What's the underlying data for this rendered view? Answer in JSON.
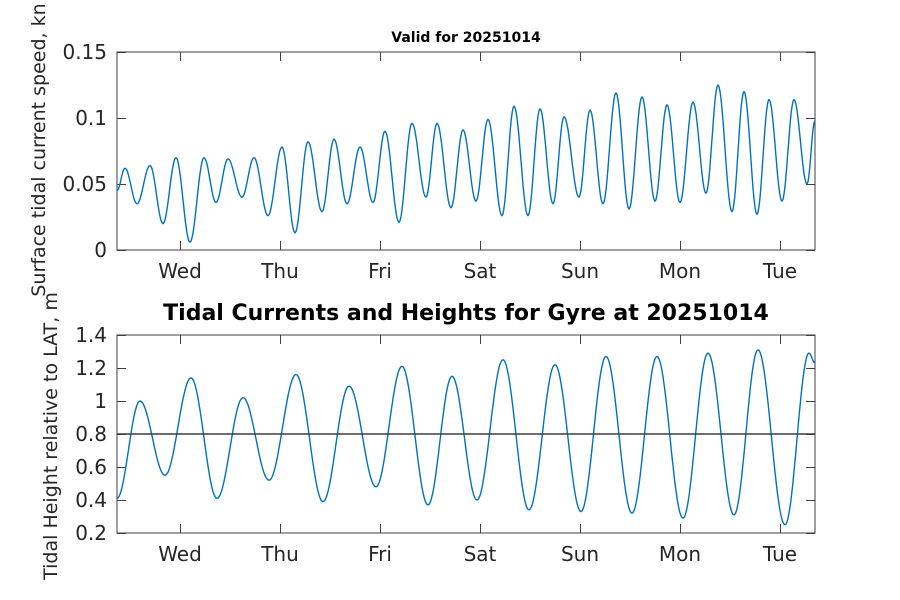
{
  "figure": {
    "background": "#ffffff",
    "axis_color": "#3f3f3f",
    "text_color": "#262626",
    "line_color": "#0072BD",
    "mean_line_color": "#3f3f3f"
  },
  "chart_data": [
    {
      "id": "surface-current-speed",
      "type": "line",
      "title": "Valid for 20251014",
      "xlabel": "",
      "ylabel": "Surface tidal current speed, kn",
      "x_unit": "day of week (Wed=1 ... Tue=7)",
      "xlim": [
        0.37,
        7.35
      ],
      "ylim": [
        0,
        0.15
      ],
      "grid": false,
      "legend": "none",
      "xticks": [
        {
          "t": 1,
          "label": "Wed"
        },
        {
          "t": 2,
          "label": "Thu"
        },
        {
          "t": 3,
          "label": "Fri"
        },
        {
          "t": 4,
          "label": "Sat"
        },
        {
          "t": 5,
          "label": "Sun"
        },
        {
          "t": 6,
          "label": "Mon"
        },
        {
          "t": 7,
          "label": "Tue"
        }
      ],
      "yticks": [
        {
          "v": 0,
          "label": "0"
        },
        {
          "v": 0.05,
          "label": "0.05"
        },
        {
          "v": 0.1,
          "label": "0.1"
        },
        {
          "v": 0.15,
          "label": "0.15"
        }
      ],
      "series": [
        {
          "name": "surface tidal current speed (kn)",
          "color": "#0072BD",
          "interpolation": "cosine-through-extremes",
          "points": [
            [
              0.37,
              0.045
            ],
            [
              0.45,
              0.062
            ],
            [
              0.57,
              0.035
            ],
            [
              0.7,
              0.064
            ],
            [
              0.83,
              0.02
            ],
            [
              0.96,
              0.07
            ],
            [
              1.1,
              0.006
            ],
            [
              1.24,
              0.07
            ],
            [
              1.36,
              0.036
            ],
            [
              1.48,
              0.069
            ],
            [
              1.62,
              0.04
            ],
            [
              1.74,
              0.07
            ],
            [
              1.88,
              0.026
            ],
            [
              2.02,
              0.078
            ],
            [
              2.15,
              0.013
            ],
            [
              2.28,
              0.082
            ],
            [
              2.42,
              0.029
            ],
            [
              2.54,
              0.084
            ],
            [
              2.67,
              0.035
            ],
            [
              2.8,
              0.078
            ],
            [
              2.93,
              0.036
            ],
            [
              3.05,
              0.09
            ],
            [
              3.19,
              0.021
            ],
            [
              3.32,
              0.096
            ],
            [
              3.46,
              0.04
            ],
            [
              3.57,
              0.096
            ],
            [
              3.71,
              0.032
            ],
            [
              3.83,
              0.091
            ],
            [
              3.96,
              0.037
            ],
            [
              4.08,
              0.099
            ],
            [
              4.22,
              0.026
            ],
            [
              4.34,
              0.109
            ],
            [
              4.48,
              0.026
            ],
            [
              4.6,
              0.107
            ],
            [
              4.73,
              0.035
            ],
            [
              4.84,
              0.101
            ],
            [
              4.99,
              0.04
            ],
            [
              5.1,
              0.106
            ],
            [
              5.23,
              0.035
            ],
            [
              5.36,
              0.119
            ],
            [
              5.49,
              0.031
            ],
            [
              5.62,
              0.116
            ],
            [
              5.75,
              0.037
            ],
            [
              5.87,
              0.11
            ],
            [
              6.0,
              0.036
            ],
            [
              6.13,
              0.112
            ],
            [
              6.26,
              0.043
            ],
            [
              6.38,
              0.125
            ],
            [
              6.52,
              0.029
            ],
            [
              6.64,
              0.12
            ],
            [
              6.77,
              0.027
            ],
            [
              6.89,
              0.114
            ],
            [
              7.02,
              0.037
            ],
            [
              7.14,
              0.114
            ],
            [
              7.27,
              0.05
            ],
            [
              7.35,
              0.098
            ]
          ]
        }
      ]
    },
    {
      "id": "tidal-height",
      "type": "line",
      "title": "Tidal Currents and Heights for Gyre at 20251014",
      "xlabel": "",
      "ylabel": "Tidal Height relative to LAT, m",
      "x_unit": "day of week (Wed=1 ... Tue=7)",
      "xlim": [
        0.37,
        7.35
      ],
      "ylim": [
        0.2,
        1.4
      ],
      "grid": false,
      "legend": "none",
      "xticks": [
        {
          "t": 1,
          "label": "Wed"
        },
        {
          "t": 2,
          "label": "Thu"
        },
        {
          "t": 3,
          "label": "Fri"
        },
        {
          "t": 4,
          "label": "Sat"
        },
        {
          "t": 5,
          "label": "Sun"
        },
        {
          "t": 6,
          "label": "Mon"
        },
        {
          "t": 7,
          "label": "Tue"
        }
      ],
      "yticks": [
        {
          "v": 0.2,
          "label": "0.2"
        },
        {
          "v": 0.4,
          "label": "0.4"
        },
        {
          "v": 0.6,
          "label": "0.6"
        },
        {
          "v": 0.8,
          "label": "0.8"
        },
        {
          "v": 1.0,
          "label": "1"
        },
        {
          "v": 1.2,
          "label": "1.2"
        },
        {
          "v": 1.4,
          "label": "1.4"
        }
      ],
      "series": [
        {
          "name": "tidal height relative to LAT (m)",
          "color": "#0072BD",
          "interpolation": "cosine-through-extremes",
          "points": [
            [
              0.37,
              0.41
            ],
            [
              0.6,
              1.0
            ],
            [
              0.85,
              0.55
            ],
            [
              1.11,
              1.14
            ],
            [
              1.37,
              0.41
            ],
            [
              1.63,
              1.02
            ],
            [
              1.89,
              0.52
            ],
            [
              2.16,
              1.16
            ],
            [
              2.43,
              0.39
            ],
            [
              2.69,
              1.09
            ],
            [
              2.96,
              0.48
            ],
            [
              3.22,
              1.21
            ],
            [
              3.48,
              0.37
            ],
            [
              3.72,
              1.15
            ],
            [
              3.97,
              0.4
            ],
            [
              4.23,
              1.25
            ],
            [
              4.49,
              0.34
            ],
            [
              4.75,
              1.22
            ],
            [
              5.01,
              0.33
            ],
            [
              5.26,
              1.27
            ],
            [
              5.52,
              0.32
            ],
            [
              5.77,
              1.27
            ],
            [
              6.03,
              0.29
            ],
            [
              6.28,
              1.29
            ],
            [
              6.54,
              0.31
            ],
            [
              6.78,
              1.31
            ],
            [
              7.05,
              0.25
            ],
            [
              7.29,
              1.29
            ],
            [
              7.35,
              1.23
            ]
          ]
        },
        {
          "name": "mean level line",
          "kind": "hline",
          "value": 0.8,
          "color": "#3f3f3f"
        }
      ]
    }
  ]
}
